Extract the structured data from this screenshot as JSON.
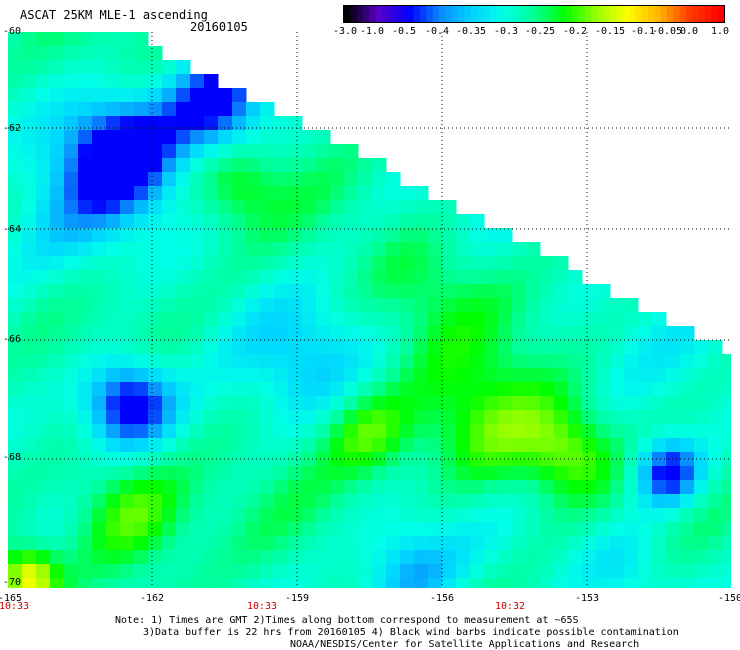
{
  "header": {
    "title": "ASCAT 25KM MLE-1 ascending",
    "date": "20160105"
  },
  "colorbar": {
    "ticks": [
      "-3.0",
      "-1.0",
      "-0.5",
      "-0.4",
      "-0.35",
      "-0.3",
      "-0.25",
      "-0.2",
      "-0.15",
      "-0.1",
      "-0.05",
      "0.0",
      "1.0"
    ],
    "colors": [
      "#000000",
      "#5a00c8",
      "#0000ff",
      "#0a8cff",
      "#00d2ff",
      "#00ffe6",
      "#00ff96",
      "#00ff00",
      "#96ff00",
      "#ffff00",
      "#ffb400",
      "#ff3c00",
      "#ff0000"
    ]
  },
  "map": {
    "lat_labels": [
      "-60",
      "-62",
      "-64",
      "-66",
      "-68",
      "-70"
    ],
    "lon_labels": [
      "-165",
      "-162",
      "-159",
      "-156",
      "-153",
      "-150"
    ],
    "time_labels": [
      "10:33",
      "10:33",
      "10:32"
    ],
    "time_color": "#cc0000"
  },
  "notes": {
    "line1": "Note: 1) Times are GMT 2)Times along bottom correspond to measurement at ~65S",
    "line2": "3)Data buffer is 22 hrs from 20160105 4) Black wind barbs indicate possible contamination",
    "line3": "NOAA/NESDIS/Center for Satellite Applications and Research"
  }
}
